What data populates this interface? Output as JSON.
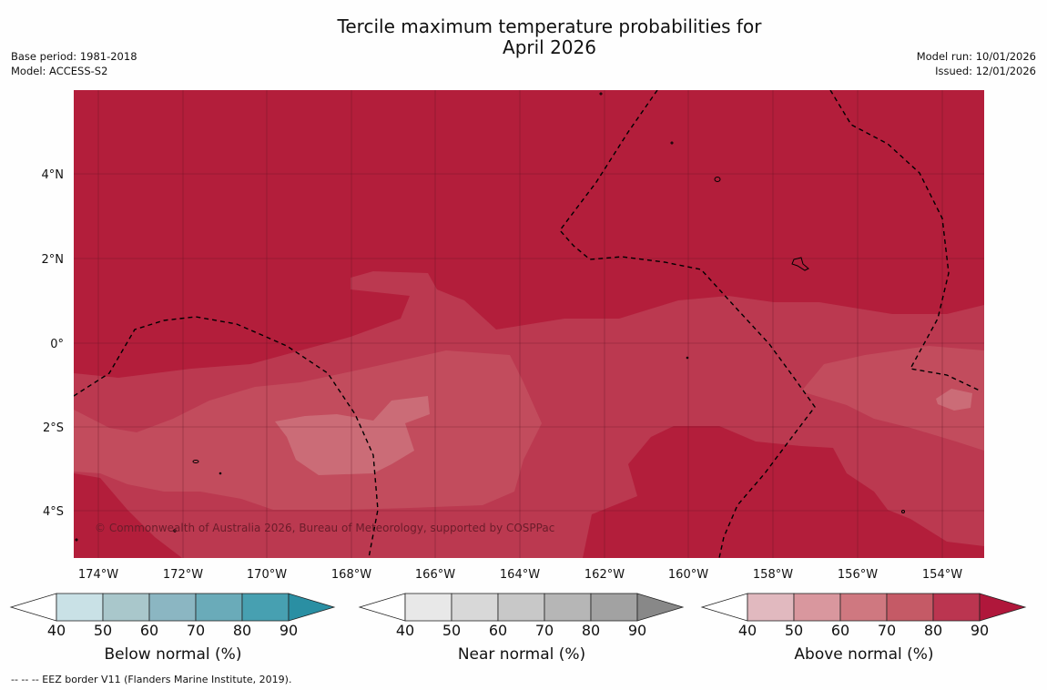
{
  "title": {
    "line1": "Tercile maximum temperature probabilities for",
    "line2": "April 2026"
  },
  "info_left": {
    "base_period": "Base period: 1981-2018",
    "model": "Model: ACCESS-S2"
  },
  "info_right": {
    "model_run": "Model run: 10/01/2026",
    "issued": "Issued: 12/01/2026"
  },
  "map": {
    "lat_labels": [
      "4°N",
      "2°N",
      "0°",
      "2°S",
      "4°S"
    ],
    "lon_labels": [
      "174°W",
      "172°W",
      "170°W",
      "168°W",
      "166°W",
      "164°W",
      "162°W",
      "160°W",
      "158°W",
      "156°W",
      "154°W"
    ],
    "copyright": "© Commonwealth of Australia 2026, Bureau of Meteorology, supported by COSPPac",
    "colors": {
      "above_80": "#b31e3b",
      "above_70": "#bb3950",
      "above_60": "#c24c5d",
      "above_50": "#cb6c77",
      "grid": "#5a1020",
      "eez": "#000000"
    }
  },
  "colorbars": [
    {
      "name": "below",
      "title": "Below normal (%)",
      "ticks": [
        "40",
        "50",
        "60",
        "70",
        "80",
        "90"
      ],
      "colors": [
        "#ffffff",
        "#c9e1e6",
        "#a9c7cb",
        "#8bb6c2",
        "#6aabb9",
        "#47a0b1",
        "#2a8fa3"
      ]
    },
    {
      "name": "near",
      "title": "Near normal (%)",
      "ticks": [
        "40",
        "50",
        "60",
        "70",
        "80",
        "90"
      ],
      "colors": [
        "#ffffff",
        "#e8e8e8",
        "#d8d8d8",
        "#c8c8c8",
        "#b6b6b6",
        "#a2a2a2",
        "#888888"
      ]
    },
    {
      "name": "above",
      "title": "Above normal (%)",
      "ticks": [
        "40",
        "50",
        "60",
        "70",
        "80",
        "90"
      ],
      "colors": [
        "#ffffff",
        "#e1b9bf",
        "#d9979e",
        "#cf7880",
        "#c55a66",
        "#bb3550",
        "#b0173b"
      ]
    }
  ],
  "footnote": "--  --  -- EEZ border V11 (Flanders Marine Institute, 2019)."
}
